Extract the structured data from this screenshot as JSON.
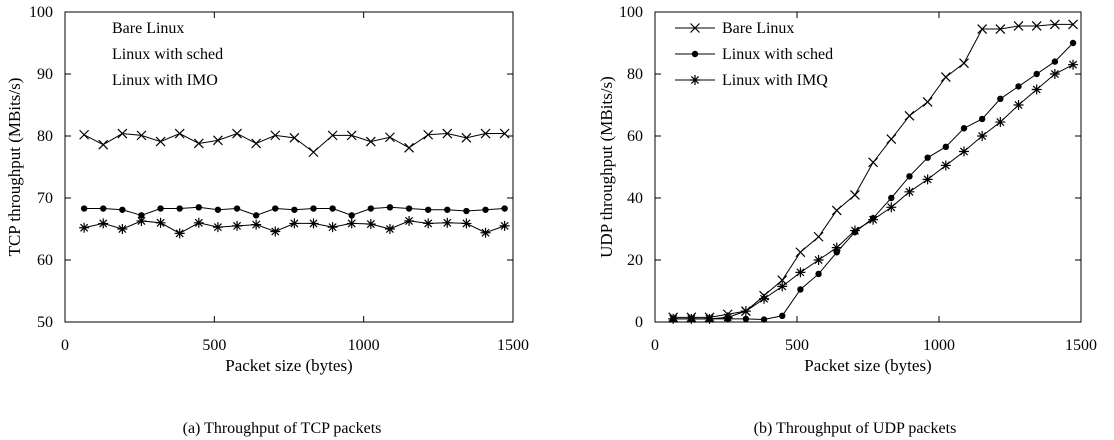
{
  "chart_data": [
    {
      "type": "line",
      "caption": "(a) Throughput of TCP packets",
      "xlabel": "Packet size (bytes)",
      "ylabel": "TCP throughput (MBits/s)",
      "xlim": [
        0,
        1500
      ],
      "ylim": [
        50,
        100
      ],
      "xticks": [
        0,
        500,
        1000,
        1500
      ],
      "yticks": [
        50,
        60,
        70,
        80,
        90,
        100
      ],
      "grid": false,
      "legend_placement": "top-left",
      "x": [
        64,
        128,
        192,
        256,
        320,
        384,
        448,
        512,
        576,
        640,
        704,
        768,
        832,
        896,
        960,
        1024,
        1088,
        1152,
        1216,
        1280,
        1344,
        1408,
        1472
      ],
      "series": [
        {
          "name": "Bare Linux",
          "marker": "x",
          "show_marker_in_legend": false,
          "values": [
            80.2,
            78.6,
            80.4,
            80.1,
            79.1,
            80.4,
            78.8,
            79.3,
            80.4,
            78.8,
            80.1,
            79.7,
            77.4,
            80.1,
            80.1,
            79.1,
            79.8,
            78.1,
            80.2,
            80.4,
            79.7,
            80.4,
            80.4
          ]
        },
        {
          "name": "Linux with sched",
          "marker": "dot",
          "show_marker_in_legend": false,
          "values": [
            68.3,
            68.3,
            68.1,
            67.2,
            68.3,
            68.3,
            68.5,
            68.1,
            68.3,
            67.2,
            68.3,
            68.1,
            68.3,
            68.3,
            67.2,
            68.3,
            68.5,
            68.3,
            68.1,
            68.1,
            67.9,
            68.1,
            68.3
          ]
        },
        {
          "name": "Linux with IMO",
          "marker": "star",
          "show_marker_in_legend": false,
          "values": [
            65.2,
            65.9,
            65.0,
            66.3,
            66.0,
            64.3,
            66.0,
            65.3,
            65.5,
            65.7,
            64.6,
            65.9,
            65.9,
            65.3,
            65.9,
            65.8,
            65.0,
            66.3,
            65.9,
            66.0,
            65.9,
            64.4,
            65.5
          ]
        }
      ]
    },
    {
      "type": "line",
      "caption": "(b) Throughput of UDP packets",
      "xlabel": "Packet size (bytes)",
      "ylabel": "UDP throughput (MBits/s)",
      "xlim": [
        0,
        1500
      ],
      "ylim": [
        0,
        100
      ],
      "xticks": [
        0,
        500,
        1000,
        1500
      ],
      "yticks": [
        0,
        20,
        40,
        60,
        80,
        100
      ],
      "grid": false,
      "legend_placement": "top-left",
      "x": [
        64,
        128,
        192,
        256,
        320,
        384,
        448,
        512,
        576,
        640,
        704,
        768,
        832,
        896,
        960,
        1024,
        1088,
        1152,
        1216,
        1280,
        1344,
        1408,
        1472
      ],
      "series": [
        {
          "name": "Bare Linux",
          "marker": "x",
          "show_marker_in_legend": true,
          "values": [
            1.5,
            1.5,
            1.5,
            2.5,
            3.5,
            8.5,
            13.5,
            22.5,
            27.5,
            36,
            41,
            51.5,
            59,
            66.5,
            71,
            79,
            83.5,
            94.5,
            94.5,
            95.5,
            95.5,
            96,
            96
          ]
        },
        {
          "name": "Linux with sched",
          "marker": "dot",
          "show_marker_in_legend": true,
          "values": [
            1,
            1,
            1,
            1,
            1,
            0.8,
            2,
            10.5,
            15.5,
            22.5,
            29,
            33.5,
            40,
            47,
            53,
            56.5,
            62.5,
            65.5,
            72,
            76,
            80,
            84,
            90
          ]
        },
        {
          "name": "Linux with IMQ",
          "marker": "star",
          "show_marker_in_legend": true,
          "values": [
            1,
            1,
            1,
            1.5,
            3.5,
            7.5,
            11.5,
            16,
            20,
            24,
            29.5,
            33,
            37,
            42,
            46,
            50.5,
            55,
            60,
            64.5,
            70,
            75,
            80,
            83
          ]
        }
      ]
    }
  ]
}
